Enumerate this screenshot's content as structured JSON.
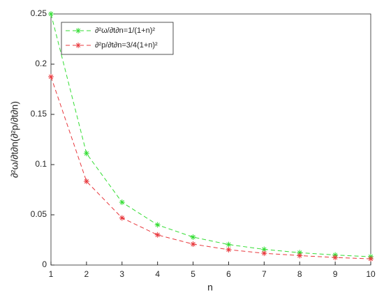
{
  "chart_data": {
    "type": "line",
    "xlabel": "n",
    "ylabel": "∂²ω/∂t∂n(∂²p/∂t∂n)",
    "x": [
      1,
      2,
      3,
      4,
      5,
      6,
      7,
      8,
      9,
      10
    ],
    "series": [
      {
        "name": "∂²ω/∂t∂n=1/(1+n)²",
        "color": "#33dd33",
        "values": [
          0.25,
          0.1111,
          0.0625,
          0.04,
          0.0278,
          0.0204,
          0.0156,
          0.0123,
          0.01,
          0.0083
        ]
      },
      {
        "name": "∂²p/∂t∂n=3/4(1+n)²",
        "color": "#e8383d",
        "values": [
          0.1875,
          0.0833,
          0.0469,
          0.03,
          0.0208,
          0.0153,
          0.0117,
          0.0094,
          0.0075,
          0.0062
        ]
      }
    ],
    "xlim": [
      1,
      10
    ],
    "xticks": [
      1,
      2,
      3,
      4,
      5,
      6,
      7,
      8,
      9,
      10
    ],
    "ylim": [
      0,
      0.25
    ],
    "yticks": [
      0,
      0.05,
      0.1,
      0.15,
      0.2,
      0.25
    ],
    "grid": false,
    "legend": "upper left"
  }
}
